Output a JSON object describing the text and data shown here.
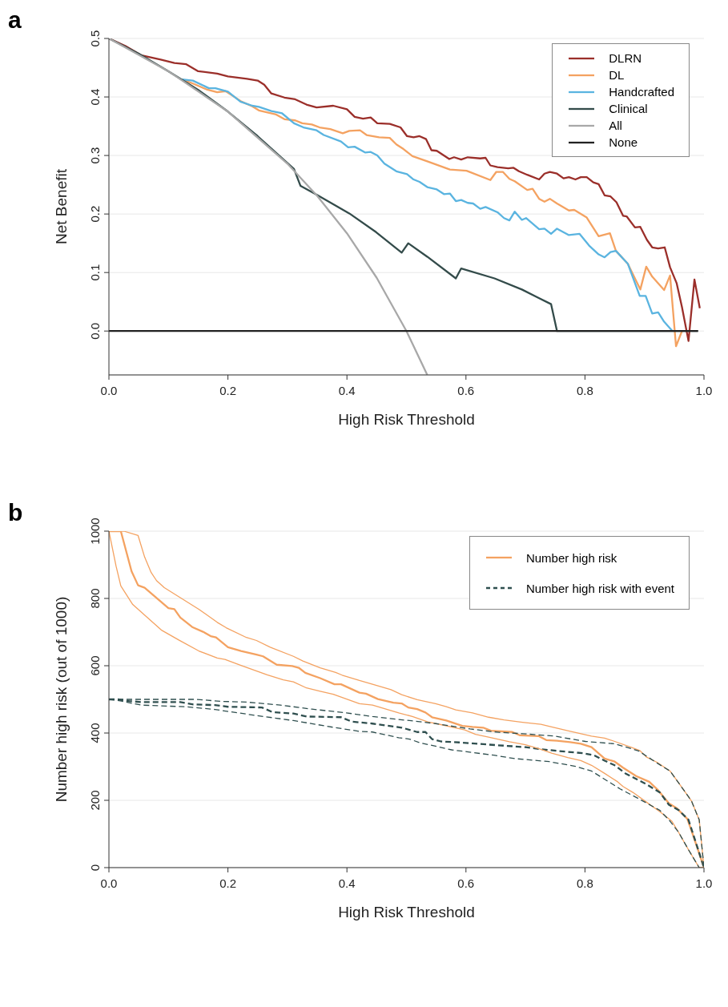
{
  "chart_data": [
    {
      "type": "line",
      "title": "a",
      "xlabel": "High Risk Threshold",
      "ylabel": "Net Benefit",
      "xlim": [
        0,
        1
      ],
      "ylim": [
        -0.075,
        0.5
      ],
      "xticks": [
        {
          "value": 0,
          "label": "0.0"
        },
        {
          "value": 0.2,
          "label": "0.2"
        },
        {
          "value": 0.4,
          "label": "0.4"
        },
        {
          "value": 0.6,
          "label": "0.6"
        },
        {
          "value": 0.8,
          "label": "0.8"
        },
        {
          "value": 1,
          "label": "1.0"
        }
      ],
      "yticks": [
        {
          "value": 0,
          "label": "0.0"
        },
        {
          "value": 0.1,
          "label": "0.1"
        },
        {
          "value": 0.2,
          "label": "0.2"
        },
        {
          "value": 0.3,
          "label": "0.3"
        },
        {
          "value": 0.4,
          "label": "0.4"
        },
        {
          "value": 0.5,
          "label": "0.5"
        }
      ],
      "grid": "y",
      "legend": "top right",
      "line_style": "solid",
      "series": [
        {
          "name": "DLRN",
          "color": "#9b2f2a",
          "x": [
            0,
            0.028,
            0.055,
            0.087,
            0.11,
            0.13,
            0.15,
            0.182,
            0.2,
            0.232,
            0.25,
            0.261,
            0.273,
            0.295,
            0.313,
            0.332,
            0.349,
            0.377,
            0.4,
            0.413,
            0.427,
            0.44,
            0.451,
            0.472,
            0.49,
            0.501,
            0.512,
            0.522,
            0.533,
            0.542,
            0.551,
            0.572,
            0.58,
            0.592,
            0.603,
            0.624,
            0.633,
            0.641,
            0.653,
            0.671,
            0.68,
            0.689,
            0.703,
            0.723,
            0.732,
            0.741,
            0.753,
            0.764,
            0.773,
            0.784,
            0.793,
            0.803,
            0.814,
            0.823,
            0.833,
            0.843,
            0.853,
            0.864,
            0.87,
            0.884,
            0.893,
            0.904,
            0.913,
            0.923,
            0.934,
            0.943,
            0.954,
            0.963,
            0.974,
            0.984,
            0.993
          ],
          "values": [
            0.5,
            0.487,
            0.471,
            0.464,
            0.458,
            0.456,
            0.444,
            0.44,
            0.435,
            0.431,
            0.428,
            0.421,
            0.406,
            0.399,
            0.396,
            0.387,
            0.382,
            0.385,
            0.379,
            0.366,
            0.363,
            0.365,
            0.355,
            0.354,
            0.348,
            0.333,
            0.331,
            0.333,
            0.328,
            0.309,
            0.308,
            0.294,
            0.297,
            0.293,
            0.297,
            0.295,
            0.296,
            0.283,
            0.28,
            0.278,
            0.279,
            0.273,
            0.267,
            0.259,
            0.269,
            0.272,
            0.269,
            0.261,
            0.263,
            0.259,
            0.263,
            0.263,
            0.254,
            0.251,
            0.232,
            0.23,
            0.22,
            0.197,
            0.196,
            0.177,
            0.178,
            0.156,
            0.143,
            0.141,
            0.143,
            0.109,
            0.082,
            0.041,
            -0.017,
            0.088,
            0.039
          ]
        },
        {
          "name": "DL",
          "color": "#f4a261",
          "x": [
            0.123,
            0.141,
            0.164,
            0.182,
            0.196,
            0.223,
            0.241,
            0.252,
            0.281,
            0.295,
            0.313,
            0.325,
            0.341,
            0.354,
            0.372,
            0.393,
            0.404,
            0.422,
            0.433,
            0.454,
            0.472,
            0.483,
            0.495,
            0.51,
            0.535,
            0.573,
            0.601,
            0.641,
            0.651,
            0.662,
            0.673,
            0.682,
            0.703,
            0.712,
            0.723,
            0.732,
            0.741,
            0.753,
            0.773,
            0.782,
            0.803,
            0.823,
            0.842,
            0.852,
            0.872,
            0.893,
            0.903,
            0.913,
            0.933,
            0.943,
            0.953,
            0.963
          ],
          "values": [
            0.43,
            0.423,
            0.413,
            0.408,
            0.41,
            0.392,
            0.384,
            0.377,
            0.37,
            0.362,
            0.36,
            0.355,
            0.353,
            0.348,
            0.345,
            0.338,
            0.342,
            0.343,
            0.335,
            0.331,
            0.33,
            0.319,
            0.311,
            0.299,
            0.29,
            0.276,
            0.274,
            0.258,
            0.272,
            0.272,
            0.26,
            0.256,
            0.241,
            0.243,
            0.226,
            0.221,
            0.226,
            0.218,
            0.206,
            0.207,
            0.194,
            0.162,
            0.167,
            0.137,
            0.115,
            0.071,
            0.11,
            0.093,
            0.07,
            0.095,
            -0.026,
            0
          ]
        },
        {
          "name": "Handcrafted",
          "color": "#5ab4e0",
          "x": [
            0.123,
            0.141,
            0.168,
            0.179,
            0.2,
            0.221,
            0.241,
            0.252,
            0.273,
            0.291,
            0.311,
            0.327,
            0.349,
            0.361,
            0.39,
            0.402,
            0.413,
            0.431,
            0.44,
            0.451,
            0.463,
            0.483,
            0.501,
            0.512,
            0.522,
            0.535,
            0.551,
            0.563,
            0.573,
            0.583,
            0.592,
            0.603,
            0.612,
            0.624,
            0.633,
            0.653,
            0.664,
            0.673,
            0.682,
            0.694,
            0.701,
            0.723,
            0.732,
            0.743,
            0.753,
            0.773,
            0.791,
            0.807,
            0.823,
            0.833,
            0.843,
            0.852,
            0.872,
            0.892,
            0.902,
            0.913,
            0.923,
            0.933,
            0.947
          ],
          "values": [
            0.43,
            0.428,
            0.415,
            0.415,
            0.409,
            0.392,
            0.385,
            0.383,
            0.376,
            0.372,
            0.355,
            0.348,
            0.343,
            0.335,
            0.324,
            0.314,
            0.315,
            0.305,
            0.306,
            0.3,
            0.286,
            0.273,
            0.268,
            0.259,
            0.255,
            0.246,
            0.242,
            0.234,
            0.235,
            0.222,
            0.224,
            0.219,
            0.218,
            0.209,
            0.212,
            0.203,
            0.193,
            0.189,
            0.204,
            0.19,
            0.193,
            0.174,
            0.175,
            0.166,
            0.175,
            0.164,
            0.166,
            0.146,
            0.131,
            0.126,
            0.135,
            0.137,
            0.115,
            0.06,
            0.06,
            0.03,
            0.032,
            0.016,
            0
          ]
        },
        {
          "name": "Clinical",
          "color": "#334b4a",
          "x": [
            0,
            0.05,
            0.1,
            0.15,
            0.2,
            0.25,
            0.311,
            0.322,
            0.349,
            0.404,
            0.449,
            0.492,
            0.503,
            0.535,
            0.583,
            0.592,
            0.648,
            0.694,
            0.721,
            0.743,
            0.753,
            0.99
          ],
          "values": [
            0.5,
            0.474,
            0.444,
            0.412,
            0.375,
            0.333,
            0.277,
            0.248,
            0.233,
            0.201,
            0.169,
            0.134,
            0.15,
            0.127,
            0.09,
            0.107,
            0.09,
            0.071,
            0.057,
            0.046,
            0,
            0
          ]
        },
        {
          "name": "All",
          "color": "#a8a8a8",
          "x": [
            0,
            0.1,
            0.2,
            0.3,
            0.35,
            0.4,
            0.45,
            0.5,
            0.535
          ],
          "values": [
            0.5,
            0.444,
            0.375,
            0.286,
            0.231,
            0.167,
            0.091,
            0,
            -0.075
          ]
        },
        {
          "name": "None",
          "color": "#222222",
          "x": [
            0,
            0.99
          ],
          "values": [
            0,
            0
          ]
        }
      ]
    },
    {
      "type": "line",
      "title": "b",
      "xlabel": "High Risk Threshold",
      "ylabel": "Number high risk (out of 1000)",
      "xlim": [
        0,
        1
      ],
      "ylim": [
        0,
        1000
      ],
      "xticks": [
        {
          "value": 0,
          "label": "0.0"
        },
        {
          "value": 0.2,
          "label": "0.2"
        },
        {
          "value": 0.4,
          "label": "0.4"
        },
        {
          "value": 0.6,
          "label": "0.6"
        },
        {
          "value": 0.8,
          "label": "0.8"
        },
        {
          "value": 1,
          "label": "1.0"
        }
      ],
      "yticks": [
        0,
        200,
        400,
        600,
        800,
        1000
      ],
      "grid": "y",
      "legend": "top right",
      "series": [
        {
          "name": "Number high risk",
          "color": "#f4a261",
          "line_style": "solid",
          "x": [
            0,
            0.02,
            0.038,
            0.049,
            0.06,
            0.1,
            0.11,
            0.12,
            0.14,
            0.158,
            0.171,
            0.18,
            0.2,
            0.222,
            0.248,
            0.259,
            0.282,
            0.308,
            0.319,
            0.33,
            0.355,
            0.379,
            0.39,
            0.421,
            0.432,
            0.452,
            0.478,
            0.492,
            0.503,
            0.518,
            0.532,
            0.543,
            0.567,
            0.594,
            0.611,
            0.629,
            0.642,
            0.678,
            0.691,
            0.722,
            0.735,
            0.753,
            0.775,
            0.793,
            0.811,
            0.833,
            0.85,
            0.864,
            0.886,
            0.908,
            0.923,
            0.941,
            0.954,
            0.972,
            0.981,
            1
          ],
          "values": [
            1000,
            1000,
            881,
            839,
            832,
            771,
            768,
            743,
            715,
            701,
            688,
            684,
            655,
            644,
            633,
            628,
            603,
            599,
            594,
            579,
            563,
            545,
            545,
            520,
            517,
            501,
            490,
            488,
            476,
            471,
            461,
            447,
            437,
            421,
            418,
            416,
            407,
            403,
            393,
            391,
            379,
            377,
            373,
            368,
            358,
            324,
            315,
            297,
            272,
            255,
            230,
            191,
            177,
            145,
            100,
            0
          ]
        },
        {
          "name": "Number high risk with event",
          "color": "#2f4f4f",
          "line_style": "dashed",
          "x": [
            0,
            0.015,
            0.034,
            0.054,
            0.12,
            0.142,
            0.178,
            0.2,
            0.257,
            0.275,
            0.31,
            0.332,
            0.39,
            0.408,
            0.443,
            0.492,
            0.518,
            0.532,
            0.543,
            0.558,
            0.589,
            0.651,
            0.7,
            0.726,
            0.753,
            0.797,
            0.815,
            0.833,
            0.85,
            0.868,
            0.903,
            0.926,
            0.941,
            0.958,
            0.974,
            1
          ],
          "values": [
            500,
            500,
            495,
            492,
            492,
            485,
            483,
            478,
            476,
            462,
            458,
            449,
            447,
            434,
            428,
            416,
            403,
            403,
            382,
            375,
            372,
            364,
            358,
            352,
            347,
            340,
            334,
            318,
            304,
            280,
            248,
            223,
            187,
            170,
            142,
            0
          ]
        },
        {
          "color": "#f4a261",
          "line_style": "solid",
          "x": [
            0,
            0.025,
            0.049,
            0.06,
            0.071,
            0.08,
            0.093,
            0.122,
            0.151,
            0.182,
            0.197,
            0.231,
            0.248,
            0.271,
            0.31,
            0.326,
            0.355,
            0.381,
            0.392,
            0.421,
            0.443,
            0.474,
            0.492,
            0.518,
            0.549,
            0.567,
            0.583,
            0.611,
            0.638,
            0.664,
            0.695,
            0.726,
            0.744,
            0.771,
            0.811,
            0.833,
            0.85,
            0.877,
            0.892,
            0.903,
            0.921,
            0.943,
            0.959,
            0.979,
            0.992,
            1
          ],
          "values": [
            1000,
            1000,
            987,
            923,
            877,
            853,
            832,
            800,
            768,
            729,
            713,
            684,
            675,
            655,
            628,
            614,
            594,
            580,
            572,
            556,
            545,
            529,
            514,
            499,
            487,
            478,
            469,
            460,
            447,
            439,
            432,
            426,
            418,
            407,
            391,
            385,
            375,
            358,
            348,
            329,
            313,
            287,
            248,
            198,
            142,
            0
          ]
        },
        {
          "color": "#f4a261",
          "line_style": "solid",
          "x": [
            0,
            0.012,
            0.02,
            0.04,
            0.089,
            0.118,
            0.151,
            0.182,
            0.195,
            0.222,
            0.266,
            0.293,
            0.31,
            0.332,
            0.355,
            0.377,
            0.421,
            0.443,
            0.487,
            0.51,
            0.536,
            0.558,
            0.598,
            0.616,
            0.638,
            0.673,
            0.7,
            0.722,
            0.744,
            0.771,
            0.793,
            0.811,
            0.833,
            0.855,
            0.864,
            0.881,
            0.903,
            0.926,
            0.946,
            0.957,
            0.974,
            0.992,
            1
          ],
          "values": [
            1000,
            896,
            837,
            782,
            705,
            676,
            644,
            623,
            619,
            601,
            573,
            558,
            552,
            534,
            524,
            515,
            487,
            483,
            460,
            449,
            433,
            425,
            409,
            396,
            388,
            374,
            365,
            354,
            340,
            327,
            318,
            304,
            280,
            255,
            241,
            223,
            195,
            166,
            138,
            106,
            53,
            0,
            0
          ]
        },
        {
          "color": "#2f4f4f",
          "line_style": "dashed",
          "x": [
            0,
            0.145,
            0.191,
            0.231,
            0.288,
            0.341,
            0.399,
            0.443,
            0.487,
            0.505,
            0.549,
            0.607,
            0.656,
            0.695,
            0.748,
            0.801,
            0.85,
            0.89,
            0.921,
            0.943,
            0.959,
            0.979,
            0.992,
            1
          ],
          "values": [
            500,
            500,
            494,
            492,
            483,
            471,
            460,
            449,
            440,
            437,
            428,
            412,
            402,
            398,
            391,
            375,
            368,
            347,
            311,
            287,
            248,
            198,
            142,
            0
          ]
        },
        {
          "color": "#2f4f4f",
          "line_style": "dashed",
          "x": [
            0,
            0.021,
            0.054,
            0.13,
            0.178,
            0.24,
            0.31,
            0.377,
            0.421,
            0.443,
            0.487,
            0.505,
            0.523,
            0.576,
            0.647,
            0.682,
            0.74,
            0.784,
            0.811,
            0.859,
            0.89,
            0.926,
            0.943,
            0.957,
            0.974,
            0.992
          ],
          "values": [
            500,
            495,
            483,
            478,
            470,
            454,
            437,
            417,
            405,
            403,
            386,
            382,
            371,
            350,
            334,
            324,
            315,
            301,
            287,
            234,
            205,
            170,
            138,
            106,
            53,
            0
          ]
        }
      ]
    }
  ]
}
